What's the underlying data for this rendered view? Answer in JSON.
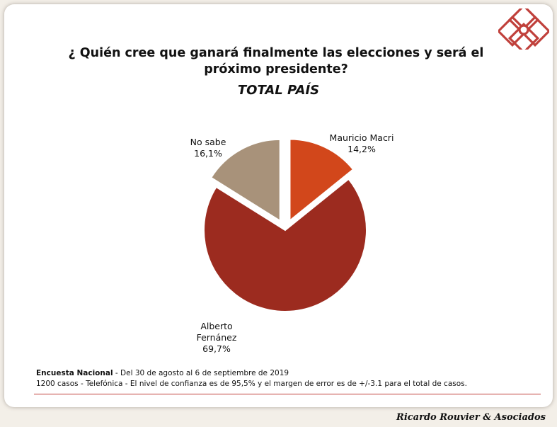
{
  "title": "¿ Quién cree que ganará finalmente las elecciones y será el próximo presidente?",
  "subtitle": "TOTAL PAÍS",
  "chart_data": {
    "type": "pie",
    "title": "¿ Quién cree que ganará finalmente las elecciones y será el próximo presidente?",
    "subtitle": "TOTAL PAÍS",
    "slices": [
      {
        "label": [
          "Mauricio Macri"
        ],
        "value": 14.2,
        "value_text": "14,2%",
        "color": "#d2471b",
        "exploded": true
      },
      {
        "label": [
          "Alberto",
          "Fernánez"
        ],
        "value": 69.7,
        "value_text": "69,7%",
        "color": "#9c2b1f",
        "exploded": false
      },
      {
        "label": [
          "No sabe"
        ],
        "value": 16.1,
        "value_text": "16,1%",
        "color": "#a8927a",
        "exploded": true
      }
    ],
    "start_angle": "12 o'clock",
    "direction": "clockwise"
  },
  "footnote": {
    "line1_bold": "Encuesta Nacional",
    "line1_rest": " - Del 30 de agosto al 6 de septiembre de 2019",
    "line2": "1200 casos - Telefónica  - El nivel de confianza es de 95,5% y el margen de error es de +/-3.1 para el total de casos."
  },
  "brand": "Ricardo Rouvier & Asociados",
  "colors": {
    "accent": "#c0403b",
    "logo": "#c0403b"
  }
}
